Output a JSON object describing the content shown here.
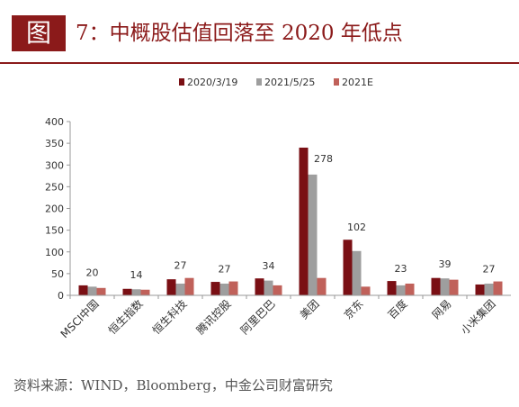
{
  "figure": {
    "badge": "图",
    "title": "7：中概股估值回落至 2020 年低点",
    "source": "资料来源：WIND，Bloomberg，中金公司财富研究"
  },
  "chart_data": {
    "type": "bar",
    "categories": [
      "MSCI中国",
      "恒生指数",
      "恒生科技",
      "腾讯控股",
      "阿里巴巴",
      "美团",
      "京东",
      "百度",
      "网易",
      "小米集团"
    ],
    "series": [
      {
        "name": "2020/3/19",
        "color": "#7a0f14",
        "values": [
          23,
          15,
          37,
          31,
          39,
          340,
          128,
          33,
          40,
          25
        ]
      },
      {
        "name": "2021/5/25",
        "color": "#9e9e9e",
        "values": [
          20,
          14,
          27,
          27,
          34,
          278,
          102,
          23,
          39,
          27
        ]
      },
      {
        "name": "2021E",
        "color": "#c0615a",
        "values": [
          17,
          13,
          40,
          32,
          23,
          40,
          20,
          27,
          36,
          32
        ]
      }
    ],
    "data_labels": [
      "20",
      "14",
      "27",
      "27",
      "34",
      "278",
      "102",
      "23",
      "39",
      "27"
    ],
    "ylim": [
      0,
      400
    ],
    "yticks": [
      0,
      50,
      100,
      150,
      200,
      250,
      300,
      350,
      400
    ],
    "legend_position": "top",
    "grid": false
  }
}
